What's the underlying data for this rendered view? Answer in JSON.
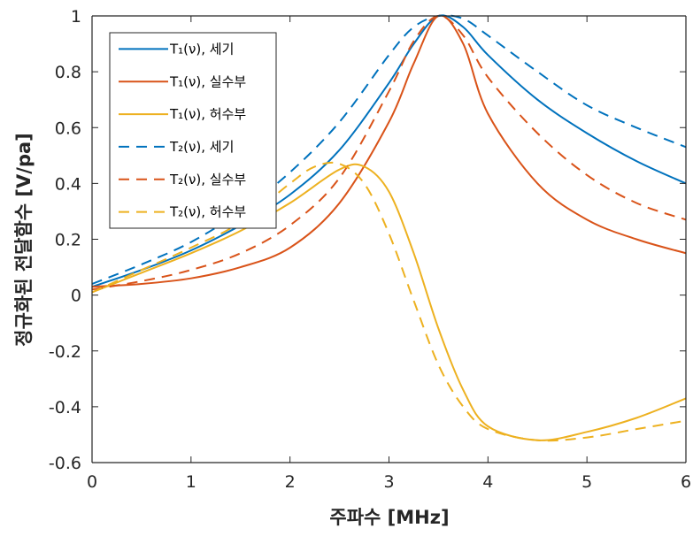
{
  "chart_data": {
    "type": "line",
    "xlabel": "주파수 [MHz]",
    "ylabel": "정규화된 전달함수 [V/pa]",
    "xlim": [
      0,
      6
    ],
    "ylim": [
      -0.6,
      1
    ],
    "xticks": [
      "0",
      "1",
      "2",
      "3",
      "4",
      "5",
      "6"
    ],
    "yticks": [
      "-0.6",
      "-0.4",
      "-0.2",
      "0",
      "0.2",
      "0.4",
      "0.6",
      "0.8",
      "1"
    ],
    "grid": false,
    "legend_position": "top-left",
    "series": [
      {
        "name": "T₁(ν), 세기",
        "color": "#0072BD",
        "dash": "solid",
        "x": [
          0,
          0.5,
          1,
          1.5,
          2,
          2.5,
          3,
          3.25,
          3.5,
          3.75,
          4,
          4.5,
          5,
          5.5,
          6
        ],
        "y": [
          0.03,
          0.09,
          0.16,
          0.25,
          0.36,
          0.52,
          0.76,
          0.9,
          1.0,
          0.96,
          0.86,
          0.7,
          0.58,
          0.48,
          0.4
        ]
      },
      {
        "name": "T₁(ν), 실수부",
        "color": "#D95319",
        "dash": "solid",
        "x": [
          0,
          0.5,
          1,
          1.5,
          2,
          2.5,
          3,
          3.25,
          3.5,
          3.75,
          4,
          4.5,
          5,
          5.5,
          6
        ],
        "y": [
          0.03,
          0.04,
          0.06,
          0.1,
          0.17,
          0.33,
          0.62,
          0.83,
          1.0,
          0.9,
          0.65,
          0.4,
          0.27,
          0.2,
          0.15
        ]
      },
      {
        "name": "T₁(ν), 허수부",
        "color": "#EDB120",
        "dash": "solid",
        "x": [
          0,
          0.5,
          1,
          1.5,
          2,
          2.5,
          2.75,
          3,
          3.25,
          3.5,
          3.75,
          4,
          4.5,
          5,
          5.5,
          6
        ],
        "y": [
          0.01,
          0.08,
          0.15,
          0.23,
          0.33,
          0.45,
          0.46,
          0.37,
          0.15,
          -0.12,
          -0.34,
          -0.47,
          -0.52,
          -0.49,
          -0.44,
          -0.37
        ]
      },
      {
        "name": "T₂(ν), 세기",
        "color": "#0072BD",
        "dash": "dashed",
        "x": [
          0,
          0.5,
          1,
          1.5,
          2,
          2.5,
          3,
          3.25,
          3.5,
          3.75,
          4,
          4.5,
          5,
          5.5,
          6
        ],
        "y": [
          0.04,
          0.11,
          0.19,
          0.3,
          0.44,
          0.62,
          0.86,
          0.96,
          1.0,
          0.99,
          0.93,
          0.8,
          0.68,
          0.6,
          0.53
        ]
      },
      {
        "name": "T₂(ν), 실수부",
        "color": "#D95319",
        "dash": "dashed",
        "x": [
          0,
          0.5,
          1,
          1.5,
          2,
          2.5,
          3,
          3.25,
          3.5,
          3.75,
          4,
          4.5,
          5,
          5.5,
          6
        ],
        "y": [
          0.02,
          0.05,
          0.09,
          0.15,
          0.25,
          0.42,
          0.73,
          0.91,
          1.0,
          0.93,
          0.78,
          0.58,
          0.43,
          0.33,
          0.27
        ]
      },
      {
        "name": "T₂(ν), 허수부",
        "color": "#EDB120",
        "dash": "dashed",
        "x": [
          0,
          0.5,
          1,
          1.5,
          2,
          2.25,
          2.5,
          2.75,
          3,
          3.25,
          3.5,
          3.75,
          4,
          4.5,
          5,
          5.5,
          6
        ],
        "y": [
          0.01,
          0.09,
          0.17,
          0.26,
          0.4,
          0.46,
          0.47,
          0.4,
          0.22,
          -0.02,
          -0.25,
          -0.4,
          -0.48,
          -0.52,
          -0.51,
          -0.48,
          -0.45
        ]
      }
    ]
  }
}
